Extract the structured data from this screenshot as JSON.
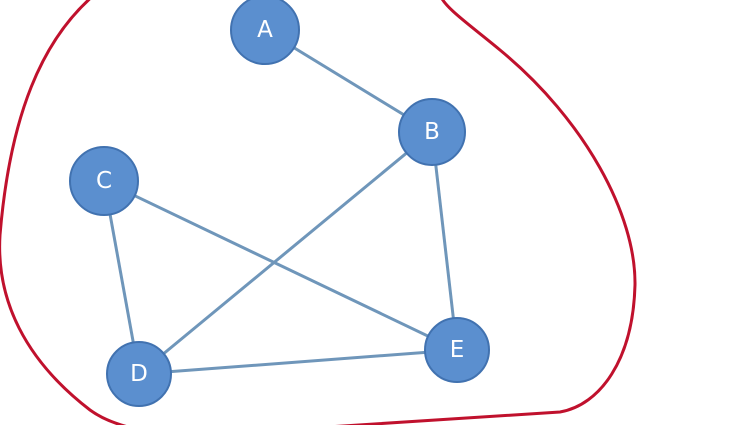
{
  "diagram": {
    "nodes": [
      {
        "id": "A",
        "label": "A"
      },
      {
        "id": "B",
        "label": "B"
      },
      {
        "id": "C",
        "label": "C"
      },
      {
        "id": "D",
        "label": "D"
      },
      {
        "id": "E",
        "label": "E"
      }
    ],
    "edges": [
      {
        "from": "A",
        "to": "B"
      },
      {
        "from": "B",
        "to": "E"
      },
      {
        "from": "B",
        "to": "D"
      },
      {
        "from": "C",
        "to": "D"
      },
      {
        "from": "C",
        "to": "E"
      },
      {
        "from": "D",
        "to": "E"
      }
    ],
    "colors": {
      "node_fill": "#5b8fcf",
      "node_stroke": "#4172b0",
      "edge": "#6f96ba",
      "boundary": "#c0112d",
      "label": "#ffffff"
    }
  }
}
